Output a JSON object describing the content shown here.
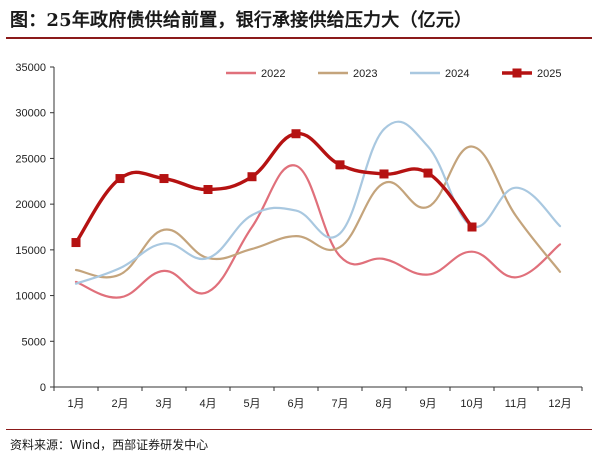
{
  "title": "图：25年政府债供给前置，银行承接供给压力大（亿元）",
  "source": "资料来源：Wind，西部证券研发中心",
  "chart_data": {
    "type": "line",
    "title": "图：25年政府债供给前置，银行承接供给压力大（亿元）",
    "unit": "亿元",
    "categories": [
      "1月",
      "2月",
      "3月",
      "4月",
      "5月",
      "6月",
      "7月",
      "8月",
      "9月",
      "10月",
      "11月",
      "12月"
    ],
    "ylim": [
      0,
      35000
    ],
    "yticks": [
      0,
      5000,
      10000,
      15000,
      20000,
      25000,
      30000,
      35000
    ],
    "legend_position": "top-right",
    "grid": false,
    "series": [
      {
        "name": "2022",
        "color": "#e0707b",
        "marker": "none",
        "values": [
          11500,
          9800,
          12700,
          10400,
          17500,
          24200,
          14300,
          14000,
          12300,
          14800,
          12000,
          15600
        ]
      },
      {
        "name": "2023",
        "color": "#c4a47c",
        "marker": "none",
        "values": [
          12800,
          12300,
          17200,
          14100,
          15100,
          16500,
          15300,
          22300,
          19700,
          26300,
          18700,
          12600
        ]
      },
      {
        "name": "2024",
        "color": "#a9c8e0",
        "marker": "none",
        "values": [
          11300,
          13000,
          15700,
          14100,
          18800,
          19300,
          16800,
          28200,
          26300,
          17600,
          21800,
          17600
        ]
      },
      {
        "name": "2025",
        "color": "#b51212",
        "marker": "square",
        "values": [
          15800,
          22800,
          22800,
          21600,
          23000,
          27700,
          24300,
          23300,
          23400,
          17500,
          null,
          null
        ]
      }
    ]
  }
}
